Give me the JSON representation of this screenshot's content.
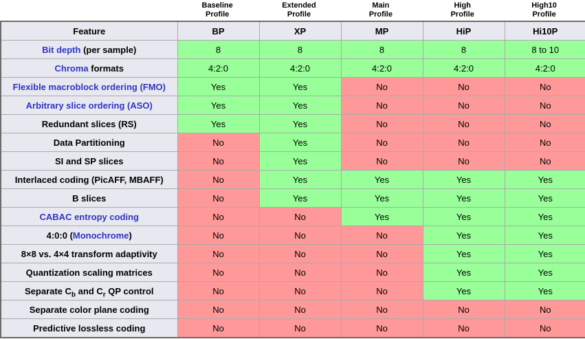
{
  "colors": {
    "yes_bg": "#99FF99",
    "no_bg": "#FF9999",
    "header_bg": "#E8E9F0",
    "link": "#2E35C2",
    "grid": "#AAAAAA",
    "outer": "#6B6B6B"
  },
  "feature_header": "Feature",
  "profiles": [
    {
      "label": "Baseline\nProfile",
      "abbr": "BP"
    },
    {
      "label": "Extended\nProfile",
      "abbr": "XP"
    },
    {
      "label": "Main\nProfile",
      "abbr": "MP"
    },
    {
      "label": "High\nProfile",
      "abbr": "HiP"
    },
    {
      "label": "High10\nProfile",
      "abbr": "Hi10P"
    }
  ],
  "rows": [
    {
      "feature": [
        {
          "text": "Bit depth",
          "link": true
        },
        {
          "text": " (per sample)"
        }
      ],
      "values": [
        "8",
        "8",
        "8",
        "8",
        "8 to 10"
      ],
      "states": [
        "yes",
        "yes",
        "yes",
        "yes",
        "yes"
      ]
    },
    {
      "feature": [
        {
          "text": "Chroma",
          "link": true
        },
        {
          "text": " formats"
        }
      ],
      "values": [
        "4:2:0",
        "4:2:0",
        "4:2:0",
        "4:2:0",
        "4:2:0"
      ],
      "states": [
        "yes",
        "yes",
        "yes",
        "yes",
        "yes"
      ]
    },
    {
      "feature": [
        {
          "text": "Flexible macroblock ordering (FMO)",
          "link": true
        }
      ],
      "values": [
        "Yes",
        "Yes",
        "No",
        "No",
        "No"
      ],
      "states": [
        "yes",
        "yes",
        "no",
        "no",
        "no"
      ]
    },
    {
      "feature": [
        {
          "text": "Arbitrary slice ordering (ASO)",
          "link": true
        }
      ],
      "values": [
        "Yes",
        "Yes",
        "No",
        "No",
        "No"
      ],
      "states": [
        "yes",
        "yes",
        "no",
        "no",
        "no"
      ]
    },
    {
      "feature": [
        {
          "text": "Redundant slices (RS)"
        }
      ],
      "values": [
        "Yes",
        "Yes",
        "No",
        "No",
        "No"
      ],
      "states": [
        "yes",
        "yes",
        "no",
        "no",
        "no"
      ]
    },
    {
      "feature": [
        {
          "text": "Data Partitioning"
        }
      ],
      "values": [
        "No",
        "Yes",
        "No",
        "No",
        "No"
      ],
      "states": [
        "no",
        "yes",
        "no",
        "no",
        "no"
      ]
    },
    {
      "feature": [
        {
          "text": "SI and SP slices"
        }
      ],
      "values": [
        "No",
        "Yes",
        "No",
        "No",
        "No"
      ],
      "states": [
        "no",
        "yes",
        "no",
        "no",
        "no"
      ]
    },
    {
      "feature": [
        {
          "text": "Interlaced coding (PicAFF, MBAFF)"
        }
      ],
      "values": [
        "No",
        "Yes",
        "Yes",
        "Yes",
        "Yes"
      ],
      "states": [
        "no",
        "yes",
        "yes",
        "yes",
        "yes"
      ]
    },
    {
      "feature": [
        {
          "text": "B slices"
        }
      ],
      "values": [
        "No",
        "Yes",
        "Yes",
        "Yes",
        "Yes"
      ],
      "states": [
        "no",
        "yes",
        "yes",
        "yes",
        "yes"
      ]
    },
    {
      "feature": [
        {
          "text": "CABAC entropy coding",
          "link": true
        }
      ],
      "values": [
        "No",
        "No",
        "Yes",
        "Yes",
        "Yes"
      ],
      "states": [
        "no",
        "no",
        "yes",
        "yes",
        "yes"
      ]
    },
    {
      "feature": [
        {
          "text": "4:0:0 ("
        },
        {
          "text": "Monochrome",
          "link": true
        },
        {
          "text": ")"
        }
      ],
      "values": [
        "No",
        "No",
        "No",
        "Yes",
        "Yes"
      ],
      "states": [
        "no",
        "no",
        "no",
        "yes",
        "yes"
      ]
    },
    {
      "feature": [
        {
          "text": "8×8 vs. 4×4 transform adaptivity"
        }
      ],
      "values": [
        "No",
        "No",
        "No",
        "Yes",
        "Yes"
      ],
      "states": [
        "no",
        "no",
        "no",
        "yes",
        "yes"
      ]
    },
    {
      "feature": [
        {
          "text": "Quantization scaling matrices"
        }
      ],
      "values": [
        "No",
        "No",
        "No",
        "Yes",
        "Yes"
      ],
      "states": [
        "no",
        "no",
        "no",
        "yes",
        "yes"
      ]
    },
    {
      "feature": [
        {
          "text": "Separate C"
        },
        {
          "text": "b",
          "sub": true
        },
        {
          "text": " and C"
        },
        {
          "text": "r",
          "sub": true
        },
        {
          "text": " QP control"
        }
      ],
      "values": [
        "No",
        "No",
        "No",
        "Yes",
        "Yes"
      ],
      "states": [
        "no",
        "no",
        "no",
        "yes",
        "yes"
      ]
    },
    {
      "feature": [
        {
          "text": "Separate color plane coding"
        }
      ],
      "values": [
        "No",
        "No",
        "No",
        "No",
        "No"
      ],
      "states": [
        "no",
        "no",
        "no",
        "no",
        "no"
      ]
    },
    {
      "feature": [
        {
          "text": "Predictive lossless coding"
        }
      ],
      "values": [
        "No",
        "No",
        "No",
        "No",
        "No"
      ],
      "states": [
        "no",
        "no",
        "no",
        "no",
        "no"
      ]
    }
  ],
  "layout": {
    "feature_col_width": 257,
    "profile_col_width": 119
  }
}
